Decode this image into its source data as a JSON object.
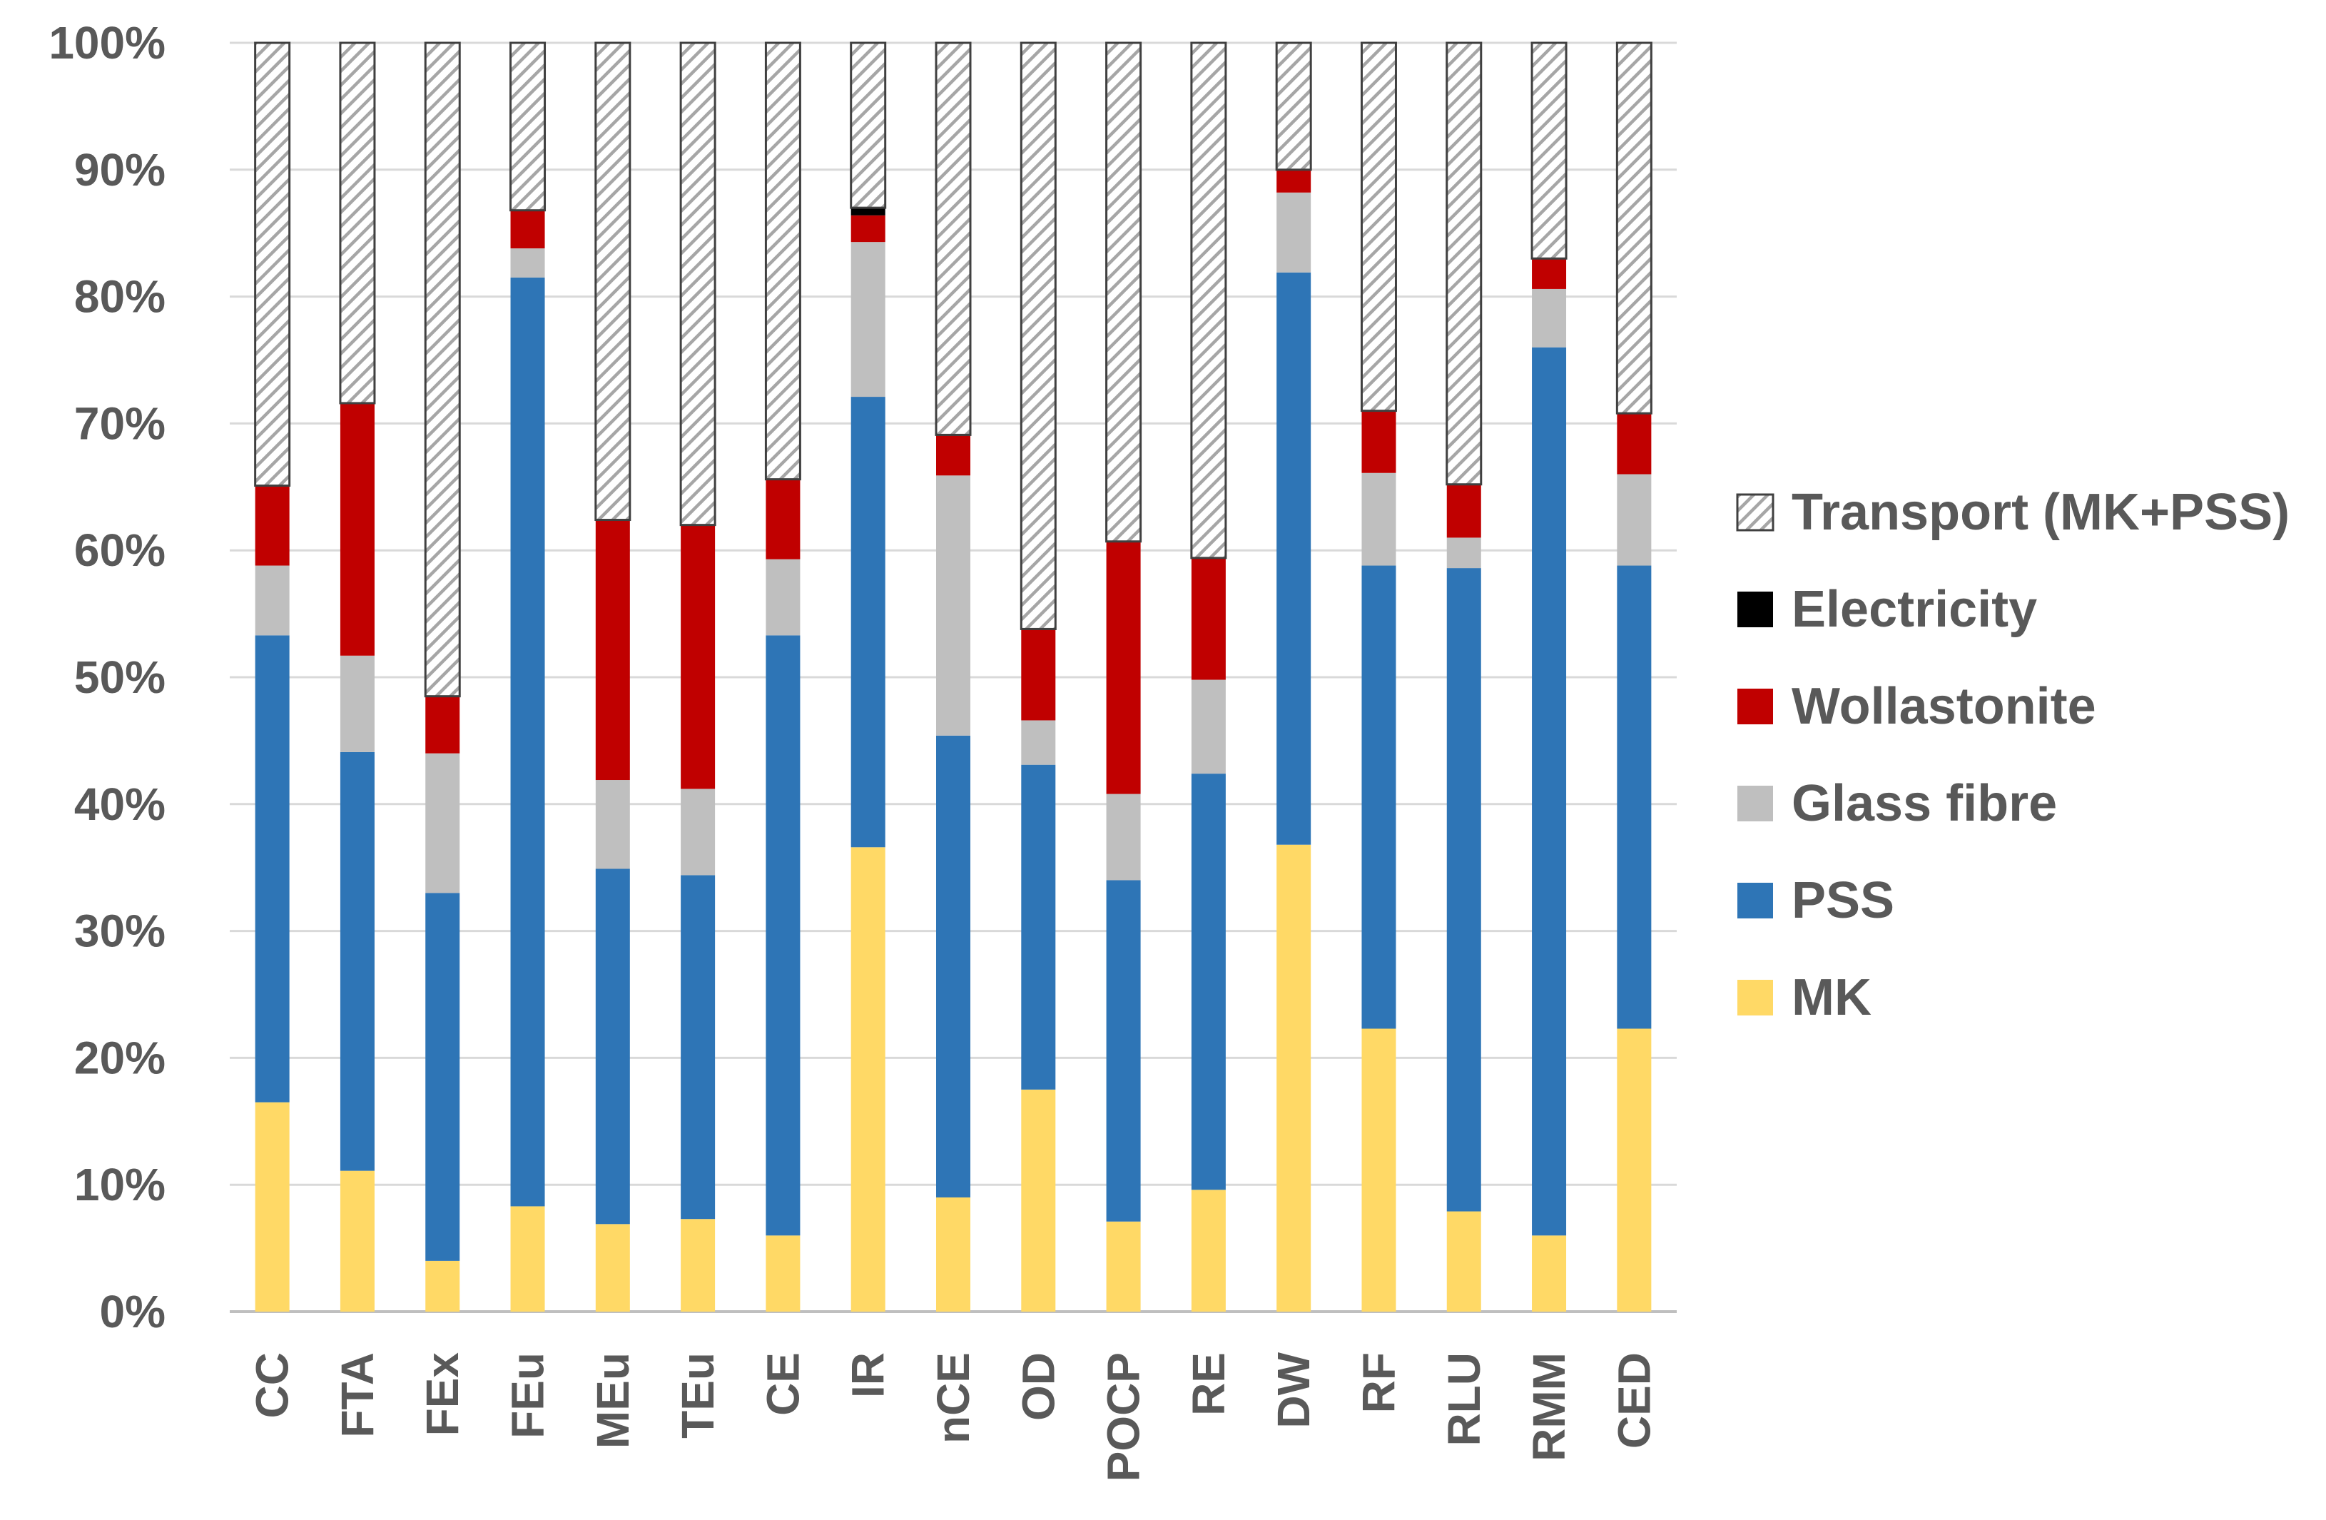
{
  "chart_data": {
    "type": "bar",
    "stacked": true,
    "percent": true,
    "categories": [
      "CC",
      "FTA",
      "FEx",
      "FEu",
      "MEu",
      "TEu",
      "CE",
      "IR",
      "nCE",
      "OD",
      "POCP",
      "RE",
      "DW",
      "RF",
      "RLU",
      "RMM",
      "CED"
    ],
    "series": [
      {
        "name": "MK",
        "color": "#FFD966",
        "pattern": "solid",
        "values": [
          16.5,
          11.1,
          4.0,
          8.3,
          6.9,
          7.3,
          6.0,
          36.6,
          9.0,
          17.5,
          7.1,
          9.6,
          36.8,
          22.3,
          7.9,
          6.0,
          22.3
        ]
      },
      {
        "name": "PSS",
        "color": "#2E75B6",
        "pattern": "solid",
        "values": [
          36.8,
          33.0,
          29.0,
          73.2,
          28.0,
          27.1,
          47.3,
          35.5,
          36.4,
          25.6,
          26.9,
          32.8,
          45.1,
          36.5,
          50.7,
          70.0,
          36.5
        ]
      },
      {
        "name": "Glass fibre",
        "color": "#BFBFBF",
        "pattern": "solid",
        "values": [
          5.5,
          7.6,
          11.0,
          2.3,
          7.0,
          6.8,
          6.0,
          12.2,
          20.5,
          3.5,
          6.8,
          7.4,
          6.3,
          7.3,
          2.4,
          4.6,
          7.2
        ]
      },
      {
        "name": "Wollastonite",
        "color": "#C00000",
        "pattern": "solid",
        "values": [
          6.3,
          19.9,
          4.5,
          3.0,
          20.5,
          20.8,
          6.3,
          2.1,
          3.2,
          7.2,
          19.9,
          9.6,
          1.8,
          4.9,
          4.2,
          2.4,
          4.8
        ]
      },
      {
        "name": "Electricity",
        "color": "#000000",
        "pattern": "solid",
        "values": [
          0.0,
          0.0,
          0.0,
          0.0,
          0.0,
          0.0,
          0.0,
          0.6,
          0.0,
          0.0,
          0.0,
          0.0,
          0.0,
          0.0,
          0.0,
          0.0,
          0.0
        ]
      },
      {
        "name": "Transport (MK+PSS)",
        "color": "#FFFFFF",
        "pattern": "hatched",
        "values": [
          34.9,
          28.4,
          51.5,
          13.2,
          37.6,
          38.0,
          34.4,
          13.0,
          30.9,
          46.2,
          39.3,
          40.6,
          10.0,
          29.0,
          34.8,
          17.0,
          29.2
        ]
      }
    ],
    "yticks": [
      "0%",
      "10%",
      "20%",
      "30%",
      "40%",
      "50%",
      "60%",
      "70%",
      "80%",
      "90%",
      "100%"
    ],
    "ylim": [
      0,
      100
    ],
    "legend_order": [
      "Transport (MK+PSS)",
      "Electricity",
      "Wollastonite",
      "Glass fibre",
      "PSS",
      "MK"
    ],
    "legend_position": "right",
    "grid": true,
    "title": "",
    "xlabel": "",
    "ylabel": ""
  }
}
